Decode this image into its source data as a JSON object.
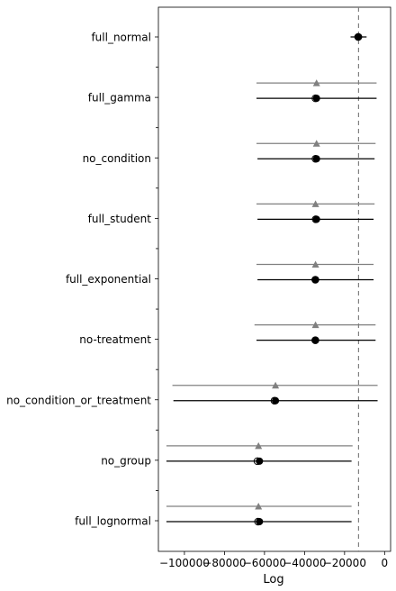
{
  "chart_data": {
    "type": "scatter",
    "subtype": "model-comparison-elpd-forest",
    "title": "",
    "xlabel": "Log",
    "ylabel": "",
    "xlim": [
      -113000,
      3000
    ],
    "xticks": [
      -100000,
      -80000,
      -60000,
      -40000,
      -20000,
      0
    ],
    "xtick_labels": [
      "−100000",
      "−80000",
      "−60000",
      "−40000",
      "−20000",
      "0"
    ],
    "reference_line": -13000,
    "grid": false,
    "legend": "none",
    "categories": [
      "full_normal",
      "full_gamma",
      "no_condition",
      "full_student",
      "full_exponential",
      "no-treatment",
      "no_condition_or_treatment",
      "no_group",
      "full_lognormal"
    ],
    "models": [
      {
        "name": "full_normal",
        "elpd": -13000,
        "elpd_lo": -17000,
        "elpd_hi": -9000,
        "insample": -13200,
        "diff": null
      },
      {
        "name": "full_gamma",
        "elpd": -34000,
        "elpd_lo": -64000,
        "elpd_hi": -4000,
        "insample": -34500,
        "diff": -34000,
        "diff_lo": -64000,
        "diff_hi": -4000
      },
      {
        "name": "no_condition",
        "elpd": -34000,
        "elpd_lo": -63500,
        "elpd_hi": -5000,
        "insample": -34500,
        "diff": -34000,
        "diff_lo": -64000,
        "diff_hi": -4500
      },
      {
        "name": "full_student",
        "elpd": -34000,
        "elpd_lo": -63500,
        "elpd_hi": -5500,
        "insample": -34400,
        "diff": -34500,
        "diff_lo": -64000,
        "diff_hi": -5000
      },
      {
        "name": "full_exponential",
        "elpd": -34500,
        "elpd_lo": -63500,
        "elpd_hi": -5500,
        "insample": -34600,
        "diff": -34500,
        "diff_lo": -64000,
        "diff_hi": -5500
      },
      {
        "name": "no-treatment",
        "elpd": -34500,
        "elpd_lo": -64000,
        "elpd_hi": -4500,
        "insample": -34600,
        "diff": -34500,
        "diff_lo": -65000,
        "diff_hi": -4500
      },
      {
        "name": "no_condition_or_treatment",
        "elpd": -54500,
        "elpd_lo": -105500,
        "elpd_hi": -3500,
        "insample": -55000,
        "diff": -54500,
        "diff_lo": -106000,
        "diff_hi": -3500
      },
      {
        "name": "no_group",
        "elpd": -62500,
        "elpd_lo": -109000,
        "elpd_hi": -16500,
        "insample": -63500,
        "diff": -63000,
        "diff_lo": -109000,
        "diff_hi": -16000
      },
      {
        "name": "full_lognormal",
        "elpd": -62500,
        "elpd_lo": -109000,
        "elpd_hi": -16500,
        "insample": -63200,
        "diff": -63000,
        "diff_lo": -109000,
        "diff_hi": -16500
      }
    ],
    "colors": {
      "elpd": "#000000",
      "diff": "#808080",
      "reference": "#808080",
      "axis": "#000000",
      "background": "#ffffff"
    }
  }
}
